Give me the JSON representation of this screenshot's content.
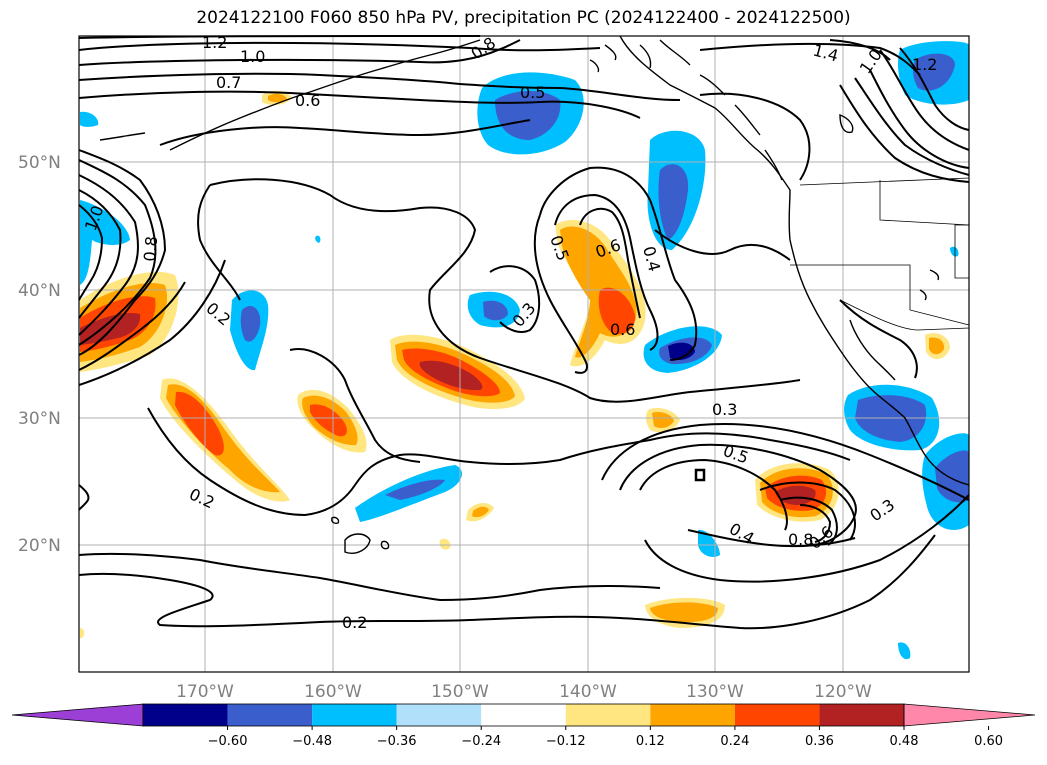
{
  "title": "2024122100 F060 850 hPa PV, precipitation PC (2024122400 - 2024122500)",
  "map": {
    "lat_labels": [
      "50°N",
      "40°N",
      "30°N",
      "20°N"
    ],
    "lon_labels": [
      "170°W",
      "160°W",
      "150°W",
      "140°W",
      "130°W",
      "120°W"
    ],
    "contour_labels": [
      "1.2",
      "1.0",
      "0.7",
      "0.6",
      "0.8",
      "0.5",
      "1.4",
      "1.2",
      "1.0",
      "0.5",
      "0.6",
      "0.4",
      "0.3",
      "0.6",
      "0.2",
      "1.0",
      "0.8",
      "0.2",
      "0.3",
      "0.5",
      "0.4",
      "0.8",
      "0.6",
      "0.3",
      "0.2"
    ]
  },
  "colorbar": {
    "tick_labels": [
      "−0.60",
      "−0.48",
      "−0.36",
      "−0.24",
      "−0.12",
      "0.12",
      "0.24",
      "0.36",
      "0.48",
      "0.60"
    ],
    "colors": [
      "#9b3fd6",
      "#00008b",
      "#3a5fcd",
      "#00bfff",
      "#b0e0fa",
      "#ffffff",
      "#ffe680",
      "#ffa500",
      "#ff4500",
      "#b22222",
      "#ff88aa"
    ]
  }
}
